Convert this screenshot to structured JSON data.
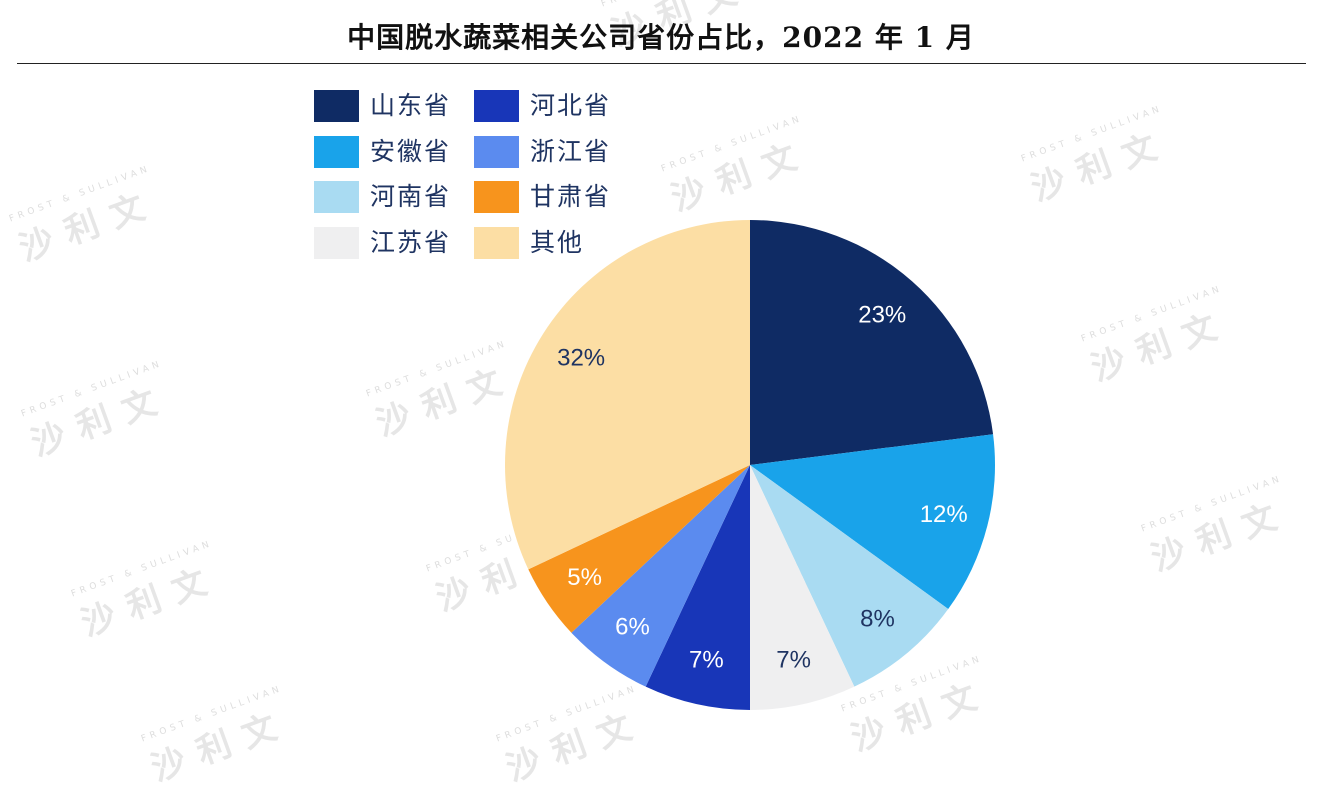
{
  "page": {
    "title": "中国脱水蔬菜相关公司省份占比，2022 年 1 月"
  },
  "watermark": {
    "small": "FROST & SULLIVAN",
    "main": "沙利文"
  },
  "chart_data": {
    "type": "pie",
    "title": "中国脱水蔬菜相关公司省份占比，2022 年 1 月",
    "unit": "%",
    "start_angle_deg": 0,
    "direction": "clockwise",
    "legend_position": "top-left",
    "slices": [
      {
        "label": "山东省",
        "value": 23,
        "color": "#0f2b64",
        "text_color": "#ffffff"
      },
      {
        "label": "安徽省",
        "value": 12,
        "color": "#19a3ea",
        "text_color": "#ffffff"
      },
      {
        "label": "河南省",
        "value": 8,
        "color": "#a9dbf2",
        "text_color": "#1f3462"
      },
      {
        "label": "江苏省",
        "value": 7,
        "color": "#efeff0",
        "text_color": "#1f3462"
      },
      {
        "label": "河北省",
        "value": 7,
        "color": "#1836b8",
        "text_color": "#ffffff"
      },
      {
        "label": "浙江省",
        "value": 6,
        "color": "#5b8bef",
        "text_color": "#ffffff"
      },
      {
        "label": "甘肃省",
        "value": 5,
        "color": "#f7941d",
        "text_color": "#ffffff"
      },
      {
        "label": "其他",
        "value": 32,
        "color": "#fcdea4",
        "text_color": "#1f3462"
      }
    ],
    "data_labels": [
      "23%",
      "12%",
      "8%",
      "7%",
      "7%",
      "6%",
      "5%",
      "32%"
    ],
    "legend": [
      {
        "label": "山东省",
        "color": "#0f2b64"
      },
      {
        "label": "河北省",
        "color": "#1836b8"
      },
      {
        "label": "安徽省",
        "color": "#19a3ea"
      },
      {
        "label": "浙江省",
        "color": "#5b8bef"
      },
      {
        "label": "河南省",
        "color": "#a9dbf2"
      },
      {
        "label": "甘肃省",
        "color": "#f7941d"
      },
      {
        "label": "江苏省",
        "color": "#efeff0"
      },
      {
        "label": "其他",
        "color": "#fcdea4"
      }
    ]
  }
}
